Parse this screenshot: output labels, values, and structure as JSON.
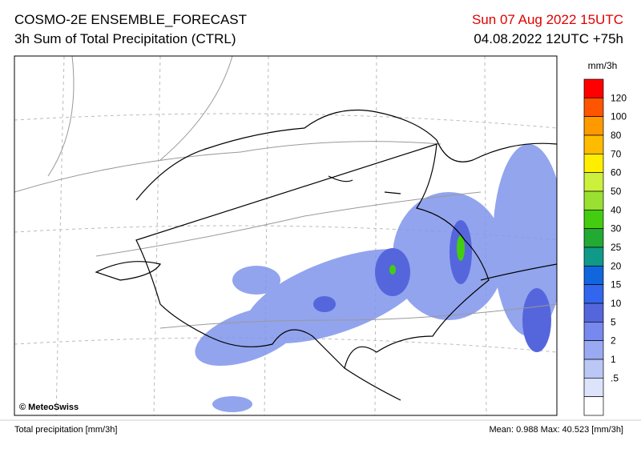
{
  "header": {
    "title": "COSMO-2E ENSEMBLE_FORECAST",
    "subtitle": "3h Sum of Total Precipitation (CTRL)",
    "valid_time": "Sun 07 Aug 2022 15UTC",
    "run_time": "04.08.2022 12UTC +75h"
  },
  "legend": {
    "unit": "mm/3h",
    "colors": [
      "#ff0000",
      "#ff5500",
      "#ff9900",
      "#ffbb00",
      "#ffee00",
      "#ccf03c",
      "#99e033",
      "#44cc11",
      "#22aa33",
      "#119988",
      "#1166dd",
      "#3366ee",
      "#5566dd",
      "#7788ee",
      "#9aaaf2",
      "#bbc8f6",
      "#dde3fb",
      "#ffffff"
    ],
    "labels": [
      "120",
      "100",
      "80",
      "70",
      "60",
      "50",
      "40",
      "30",
      "25",
      "20",
      "15",
      "10",
      "5",
      "2",
      "1",
      ".5"
    ]
  },
  "map": {
    "credit": "© MeteoSwiss"
  },
  "footer": {
    "left": "Total precipitation [mm/3h]",
    "right": "Mean:  0.988 Max:  40.523 [mm/3h]"
  }
}
